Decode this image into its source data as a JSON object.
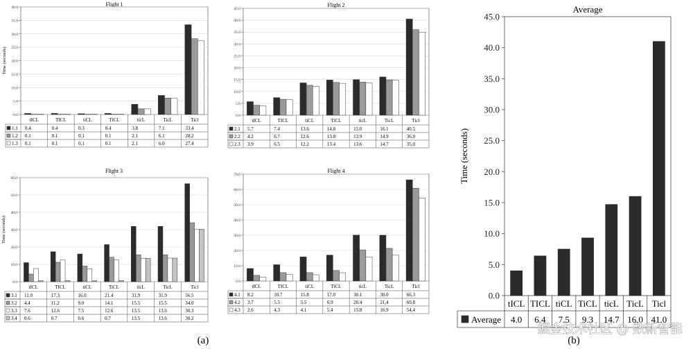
{
  "chart_data": [
    {
      "type": "bar",
      "title": "Flight 1",
      "ylabel": "Time (seconds)",
      "ylim": [
        0,
        40
      ],
      "yticks": [
        "0.0",
        "5.0",
        "10.0",
        "15.0",
        "20.0",
        "25.0",
        "30.0",
        "35.0",
        "40.0"
      ],
      "categories": [
        "tICL",
        "TICL",
        "tiCL",
        "TiCL",
        "ticL",
        "TicL",
        "Ticl"
      ],
      "series": [
        {
          "name": "1.1",
          "color": "#2b2b2b",
          "values": [
            0.4,
            0.4,
            0.3,
            0.4,
            3.8,
            7.1,
            33.4
          ]
        },
        {
          "name": "1.2",
          "color": "#9a9a9a",
          "values": [
            0.1,
            0.1,
            0.1,
            0.1,
            2.1,
            6.1,
            28.2
          ]
        },
        {
          "name": "1.3",
          "color": "#ffffff",
          "values": [
            0.1,
            0.1,
            0.1,
            0.1,
            2.1,
            6.0,
            27.4
          ]
        }
      ]
    },
    {
      "type": "bar",
      "title": "Flight 2",
      "ylabel": "",
      "ylim": [
        0,
        45
      ],
      "yticks": [
        "0.0",
        "5.0",
        "10.0",
        "15.0",
        "20.0",
        "25.0",
        "30.0",
        "35.0",
        "40.0",
        "45.0"
      ],
      "categories": [
        "tICL",
        "TICL",
        "tiCL",
        "TiCL",
        "ticL",
        "TicL",
        "Ticl"
      ],
      "series": [
        {
          "name": "2.1",
          "color": "#2b2b2b",
          "values": [
            5.7,
            7.4,
            13.6,
            14.8,
            15.0,
            16.1,
            40.5
          ]
        },
        {
          "name": "2.2",
          "color": "#9a9a9a",
          "values": [
            4.2,
            6.7,
            12.6,
            13.8,
            13.9,
            14.9,
            36.0
          ]
        },
        {
          "name": "2.3",
          "color": "#ffffff",
          "values": [
            3.9,
            6.5,
            12.2,
            13.4,
            13.6,
            14.7,
            35.0
          ]
        }
      ]
    },
    {
      "type": "bar",
      "title": "Flight 3",
      "ylabel": "Time (seconds)",
      "ylim": [
        0,
        60
      ],
      "yticks": [
        "0.0",
        "10.0",
        "20.0",
        "30.0",
        "40.0",
        "50.0",
        "60.0"
      ],
      "categories": [
        "tICL",
        "TICL",
        "tiCL",
        "TiCL",
        "ticL",
        "TicL",
        "Ticl"
      ],
      "series": [
        {
          "name": "3.1",
          "color": "#2b2b2b",
          "values": [
            11.0,
            17.3,
            16.0,
            21.4,
            31.9,
            31.9,
            56.5
          ]
        },
        {
          "name": "3.2",
          "color": "#9a9a9a",
          "values": [
            4.4,
            11.2,
            9.0,
            14.1,
            15.5,
            15.5,
            34.0
          ]
        },
        {
          "name": "3.3",
          "color": "#ffffff",
          "values": [
            7.6,
            12.6,
            7.5,
            12.6,
            13.5,
            13.6,
            30.3
          ]
        },
        {
          "name": "3.4",
          "color": "#c4c4c4",
          "values": [
            0.6,
            0.7,
            0.6,
            0.7,
            13.5,
            13.6,
            30.2
          ]
        }
      ]
    },
    {
      "type": "bar",
      "title": "Flight 4",
      "ylabel": "",
      "ylim": [
        0,
        70
      ],
      "yticks": [
        "0.0",
        "10.0",
        "20.0",
        "30.0",
        "40.0",
        "50.0",
        "60.0",
        "70.0"
      ],
      "categories": [
        "tICL",
        "TICL",
        "tiCL",
        "TiCL",
        "ticL",
        "TicL",
        "Ticl"
      ],
      "series": [
        {
          "name": "4.1",
          "color": "#2b2b2b",
          "values": [
            8.2,
            10.7,
            15.8,
            17.0,
            30.1,
            30.0,
            66.3
          ]
        },
        {
          "name": "4.2",
          "color": "#9a9a9a",
          "values": [
            3.7,
            5.5,
            5.5,
            6.9,
            20.4,
            21.4,
            60.8
          ]
        },
        {
          "name": "4.3",
          "color": "#ffffff",
          "values": [
            2.6,
            4.3,
            4.1,
            5.4,
            15.8,
            16.9,
            54.4
          ]
        }
      ]
    },
    {
      "type": "bar",
      "title": "Average",
      "ylabel": "Time (seconds)",
      "ylim": [
        0,
        45
      ],
      "yticks": [
        "0.0",
        "5.0",
        "10.0",
        "15.0",
        "20.0",
        "25.0",
        "30.0",
        "35.0",
        "40.0",
        "45.0"
      ],
      "categories": [
        "tICL",
        "TICL",
        "tiCL",
        "TiCL",
        "ticL",
        "TicL",
        "Ticl"
      ],
      "series": [
        {
          "name": "Average",
          "color": "#2b2b2b",
          "values": [
            4.0,
            6.4,
            7.5,
            9.3,
            14.7,
            16.0,
            41.0
          ],
          "labels": [
            "4.0",
            "6.4",
            "7.5",
            "9.3",
            "14.7",
            "16.0",
            "41.0"
          ]
        }
      ]
    }
  ],
  "captions": {
    "a": "(a)",
    "b": "(b)"
  },
  "watermark": "掘金技术社区 @ 数新智能"
}
